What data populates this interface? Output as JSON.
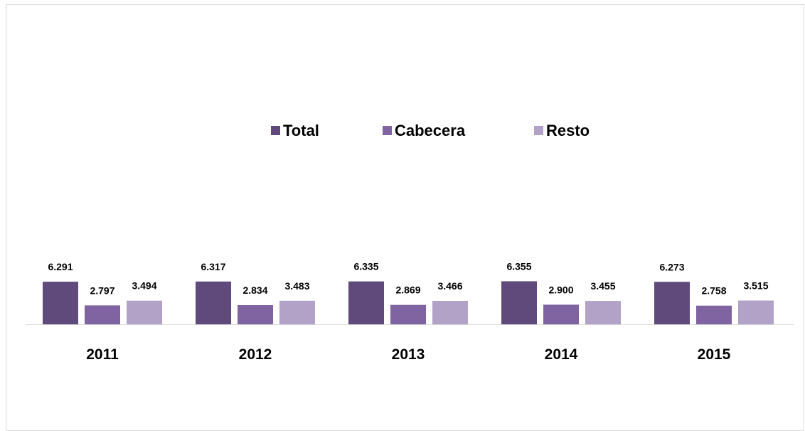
{
  "chart_data": {
    "type": "bar",
    "categories": [
      "2011",
      "2012",
      "2013",
      "2014",
      "2015"
    ],
    "series": [
      {
        "name": "Total",
        "values": [
          6.291,
          6.317,
          6.335,
          6.355,
          6.273
        ],
        "labels": [
          "6.291",
          "6.317",
          "6.335",
          "6.355",
          "6.273"
        ],
        "color": "#604a7b"
      },
      {
        "name": "Cabecera",
        "values": [
          2.797,
          2.834,
          2.869,
          2.9,
          2.758
        ],
        "labels": [
          "2.797",
          "2.834",
          "2.869",
          "2.900",
          "2.758"
        ],
        "color": "#8064a2"
      },
      {
        "name": "Resto",
        "values": [
          3.494,
          3.483,
          3.466,
          3.455,
          3.515
        ],
        "labels": [
          "3.494",
          "3.483",
          "3.466",
          "3.455",
          "3.515"
        ],
        "color": "#b3a2c7"
      }
    ],
    "title": "",
    "xlabel": "",
    "ylabel": "",
    "ylim": [
      0,
      10
    ],
    "grid": false,
    "legend": "top-center",
    "axis_line_color": "#d9d9d9"
  }
}
